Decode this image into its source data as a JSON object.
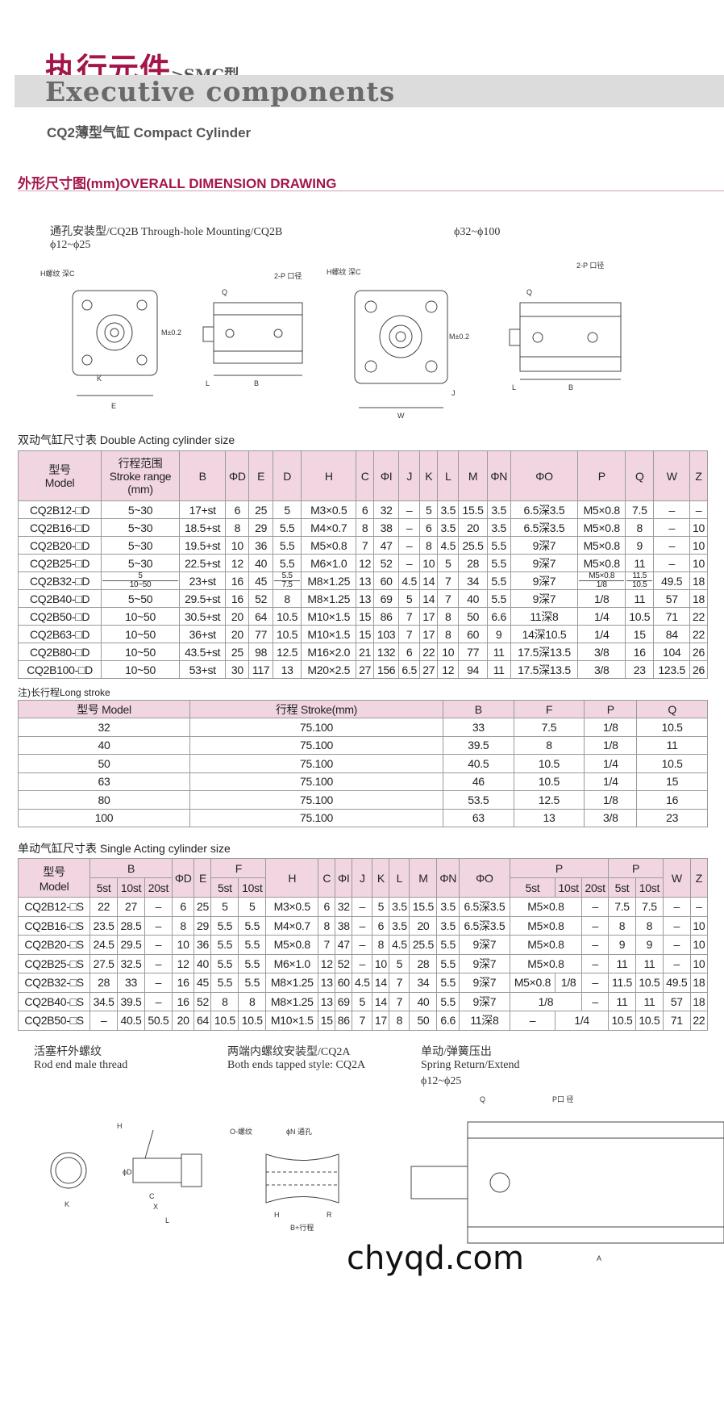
{
  "header": {
    "title_cn": "执行元件",
    "title_suffix": ">SMC型",
    "title_en": "Executive components",
    "subtitle": "CQ2薄型气缸 Compact Cylinder"
  },
  "section": {
    "title": "外形尺寸图(mm)OVERALL DIMENSION DRAWING"
  },
  "drawings_top": {
    "caption_left": "通孔安装型/CQ2B Through-hole Mounting/CQ2B",
    "range_left": "ϕ12~ϕ25",
    "range_right": "ϕ32~ϕ100",
    "labels_left": [
      "H螺纹 深C",
      "E",
      "M±0.2",
      "Q",
      "2-P 口径",
      "L",
      "B",
      "K"
    ],
    "labels_right": [
      "H螺纹 深C",
      "W",
      "M±0.2",
      "Q",
      "2-P 口径",
      "L",
      "B",
      "J"
    ]
  },
  "double_acting": {
    "title": "双动气缸尺寸表  Double Acting cylinder size",
    "headers": [
      [
        "型号",
        "Model"
      ],
      [
        "行程范围",
        "Stroke range",
        "(mm)"
      ],
      [
        "B"
      ],
      [
        "ΦD"
      ],
      [
        "E"
      ],
      [
        "D"
      ],
      [
        "H"
      ],
      [
        "C"
      ],
      [
        "ΦI"
      ],
      [
        "J"
      ],
      [
        "K"
      ],
      [
        "L"
      ],
      [
        "M"
      ],
      [
        "ΦN"
      ],
      [
        "ΦO"
      ],
      [
        "P"
      ],
      [
        "Q"
      ],
      [
        "W"
      ],
      [
        "Z"
      ]
    ],
    "rows": [
      [
        "CQ2B12-□D",
        "5~30",
        "17+st",
        "6",
        "25",
        "5",
        "M3×0.5",
        "6",
        "32",
        "–",
        "5",
        "3.5",
        "15.5",
        "3.5",
        "6.5深3.5",
        "M5×0.8",
        "7.5",
        "–",
        "–"
      ],
      [
        "CQ2B16-□D",
        "5~30",
        "18.5+st",
        "8",
        "29",
        "5.5",
        "M4×0.7",
        "8",
        "38",
        "–",
        "6",
        "3.5",
        "20",
        "3.5",
        "6.5深3.5",
        "M5×0.8",
        "8",
        "–",
        "10"
      ],
      [
        "CQ2B20-□D",
        "5~30",
        "19.5+st",
        "10",
        "36",
        "5.5",
        "M5×0.8",
        "7",
        "47",
        "–",
        "8",
        "4.5",
        "25.5",
        "5.5",
        "9深7",
        "M5×0.8",
        "9",
        "–",
        "10"
      ],
      [
        "CQ2B25-□D",
        "5~30",
        "22.5+st",
        "12",
        "40",
        "5.5",
        "M6×1.0",
        "12",
        "52",
        "–",
        "10",
        "5",
        "28",
        "5.5",
        "9深7",
        "M5×0.8",
        "11",
        "–",
        "10"
      ],
      [
        "CQ2B32-□D",
        [
          "5",
          "10~50"
        ],
        "23+st",
        "16",
        "45",
        [
          "5.5",
          "7.5"
        ],
        "M8×1.25",
        "13",
        "60",
        "4.5",
        "14",
        "7",
        "34",
        "5.5",
        "9深7",
        [
          "M5×0.8",
          "1/8"
        ],
        [
          "11.5",
          "10.5"
        ],
        "49.5",
        "18"
      ],
      [
        "CQ2B40-□D",
        "5~50",
        "29.5+st",
        "16",
        "52",
        "8",
        "M8×1.25",
        "13",
        "69",
        "5",
        "14",
        "7",
        "40",
        "5.5",
        "9深7",
        "1/8",
        "11",
        "57",
        "18"
      ],
      [
        "CQ2B50-□D",
        "10~50",
        "30.5+st",
        "20",
        "64",
        "10.5",
        "M10×1.5",
        "15",
        "86",
        "7",
        "17",
        "8",
        "50",
        "6.6",
        "11深8",
        "1/4",
        "10.5",
        "71",
        "22"
      ],
      [
        "CQ2B63-□D",
        "10~50",
        "36+st",
        "20",
        "77",
        "10.5",
        "M10×1.5",
        "15",
        "103",
        "7",
        "17",
        "8",
        "60",
        "9",
        "14深10.5",
        "1/4",
        "15",
        "84",
        "22"
      ],
      [
        "CQ2B80-□D",
        "10~50",
        "43.5+st",
        "25",
        "98",
        "12.5",
        "M16×2.0",
        "21",
        "132",
        "6",
        "22",
        "10",
        "77",
        "11",
        "17.5深13.5",
        "3/8",
        "16",
        "104",
        "26"
      ],
      [
        "CQ2B100-□D",
        "10~50",
        "53+st",
        "30",
        "117",
        "13",
        "M20×2.5",
        "27",
        "156",
        "6.5",
        "27",
        "12",
        "94",
        "11",
        "17.5深13.5",
        "3/8",
        "23",
        "123.5",
        "26"
      ]
    ]
  },
  "long_stroke": {
    "title": "注)长行程Long stroke",
    "headers": [
      "型号 Model",
      "行程 Stroke(mm)",
      "B",
      "F",
      "P",
      "Q"
    ],
    "rows": [
      [
        "32",
        "75.100",
        "33",
        "7.5",
        "1/8",
        "10.5"
      ],
      [
        "40",
        "75.100",
        "39.5",
        "8",
        "1/8",
        "11"
      ],
      [
        "50",
        "75.100",
        "40.5",
        "10.5",
        "1/4",
        "10.5"
      ],
      [
        "63",
        "75.100",
        "46",
        "10.5",
        "1/4",
        "15"
      ],
      [
        "80",
        "75.100",
        "53.5",
        "12.5",
        "1/8",
        "16"
      ],
      [
        "100",
        "75.100",
        "63",
        "13",
        "3/8",
        "23"
      ]
    ]
  },
  "single_acting": {
    "title": "单动气缸尺寸表  Single Acting cylinder size",
    "headers_top": [
      {
        "t": "型号\nModel",
        "rs": 2
      },
      {
        "t": "B",
        "cs": 3
      },
      {
        "t": "ΦD",
        "rs": 2
      },
      {
        "t": "E",
        "rs": 2
      },
      {
        "t": "F",
        "cs": 2
      },
      {
        "t": "H",
        "rs": 2
      },
      {
        "t": "C",
        "rs": 2
      },
      {
        "t": "ΦI",
        "rs": 2
      },
      {
        "t": "J",
        "rs": 2
      },
      {
        "t": "K",
        "rs": 2
      },
      {
        "t": "L",
        "rs": 2
      },
      {
        "t": "M",
        "rs": 2
      },
      {
        "t": "ΦN",
        "rs": 2
      },
      {
        "t": "ΦO",
        "rs": 2
      },
      {
        "t": "P",
        "cs": 3
      },
      {
        "t": "P",
        "cs": 2
      },
      {
        "t": "W",
        "rs": 2
      },
      {
        "t": "Z",
        "rs": 2
      }
    ],
    "headers_sub": [
      "5st",
      "10st",
      "20st",
      "5st",
      "10st",
      "5st",
      "10st",
      "20st",
      "5st",
      "10st"
    ],
    "rows": [
      [
        "CQ2B12-□S",
        "22",
        "27",
        "–",
        "6",
        "25",
        "5",
        "5",
        "M3×0.5",
        "6",
        "32",
        "–",
        "5",
        "3.5",
        "15.5",
        "3.5",
        "6.5深3.5",
        {
          "t": "M5×0.8",
          "cs": 2
        },
        "–",
        "7.5",
        "7.5",
        "–",
        "–"
      ],
      [
        "CQ2B16-□S",
        "23.5",
        "28.5",
        "–",
        "8",
        "29",
        "5.5",
        "5.5",
        "M4×0.7",
        "8",
        "38",
        "–",
        "6",
        "3.5",
        "20",
        "3.5",
        "6.5深3.5",
        {
          "t": "M5×0.8",
          "cs": 2
        },
        "–",
        "8",
        "8",
        "–",
        "10"
      ],
      [
        "CQ2B20-□S",
        "24.5",
        "29.5",
        "–",
        "10",
        "36",
        "5.5",
        "5.5",
        "M5×0.8",
        "7",
        "47",
        "–",
        "8",
        "4.5",
        "25.5",
        "5.5",
        "9深7",
        {
          "t": "M5×0.8",
          "cs": 2
        },
        "–",
        "9",
        "9",
        "–",
        "10"
      ],
      [
        "CQ2B25-□S",
        "27.5",
        "32.5",
        "–",
        "12",
        "40",
        "5.5",
        "5.5",
        "M6×1.0",
        "12",
        "52",
        "–",
        "10",
        "5",
        "28",
        "5.5",
        "9深7",
        {
          "t": "M5×0.8",
          "cs": 2
        },
        "–",
        "11",
        "11",
        "–",
        "10"
      ],
      [
        "CQ2B32-□S",
        "28",
        "33",
        "–",
        "16",
        "45",
        "5.5",
        "5.5",
        "M8×1.25",
        "13",
        "60",
        "4.5",
        "14",
        "7",
        "34",
        "5.5",
        "9深7",
        "M5×0.8",
        "1/8",
        "–",
        "11.5",
        "10.5",
        "49.5",
        "18"
      ],
      [
        "CQ2B40-□S",
        "34.5",
        "39.5",
        "–",
        "16",
        "52",
        "8",
        "8",
        "M8×1.25",
        "13",
        "69",
        "5",
        "14",
        "7",
        "40",
        "5.5",
        "9深7",
        {
          "t": "1/8",
          "cs": 2
        },
        "–",
        "11",
        "11",
        "57",
        "18"
      ],
      [
        "CQ2B50-□S",
        "–",
        "40.5",
        "50.5",
        "20",
        "64",
        "10.5",
        "10.5",
        "M10×1.5",
        "15",
        "86",
        "7",
        "17",
        "8",
        "50",
        "6.6",
        "11深8",
        "–",
        {
          "t": "1/4",
          "cs": 2
        },
        "10.5",
        "10.5",
        "71",
        "22"
      ]
    ]
  },
  "bottom": {
    "rod_cn": "活塞杆外螺纹",
    "rod_en": "Rod end male thread",
    "both_cn": "两端内螺纹安装型/CQ2A",
    "both_en": "Both ends tapped style: CQ2A",
    "spring_cn": "单动/弹簧压出",
    "spring_en": "Spring Return/Extend",
    "spring_range": "ϕ12~ϕ25",
    "labels_rod": [
      "H",
      "ϕD",
      "C",
      "X",
      "L",
      "K"
    ],
    "labels_both": [
      "O-螺纹",
      "ϕN 通孔",
      "H",
      "R",
      "B+行程"
    ],
    "labels_spring": [
      "Q",
      "P口 径",
      "A"
    ]
  },
  "watermark": "chyqd.com",
  "colors": {
    "accent": "#a4164a",
    "table_header": "#f1d6e2",
    "title_bar": "#dcdcdc"
  }
}
